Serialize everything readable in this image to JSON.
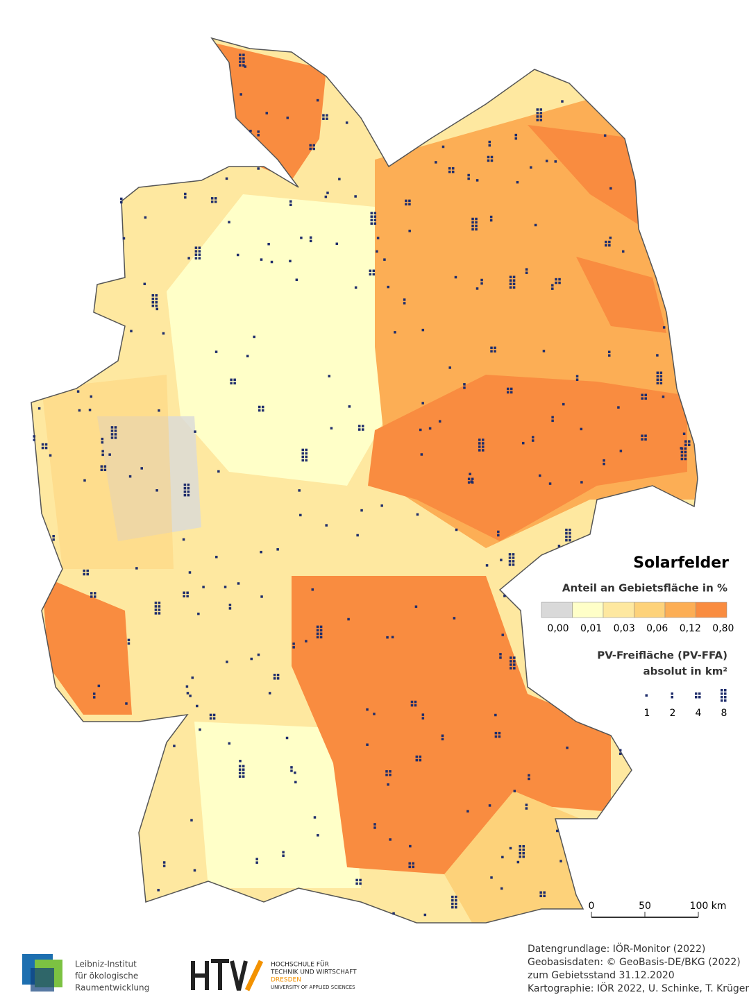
{
  "title": "Solarfelder",
  "legend": {
    "subtitle": "Anteil an Gebietsfläche in %",
    "classes": [
      "#d9d9d9",
      "#ffffc8",
      "#fee8a0",
      "#fdd27a",
      "#fcae55",
      "#f98c40"
    ],
    "breaks": [
      "0,00",
      "0,01",
      "0,03",
      "0,06",
      "0,12",
      "0,80"
    ],
    "symbol_title": [
      "PV-Freifläche (PV-FFA)",
      "absolut in km²"
    ],
    "symbols": [
      "1",
      "2",
      "4",
      "8"
    ]
  },
  "scale": {
    "labels": [
      "0",
      "50",
      "100 km"
    ]
  },
  "credits": [
    "Datengrundlage: IÖR-Monitor (2022)",
    "Geobasisdaten: © GeoBasis-DE/BKG (2022)",
    "zum Gebietsstand 31.12.2020",
    "Kartographie: IÖR 2022, U. Schinke, T. Krüger"
  ],
  "logos": {
    "ioer": [
      "Leibniz-Institut",
      "für ökologische",
      "Raumentwicklung"
    ],
    "htw": [
      "HOCHSCHULE FÜR",
      "TECHNIK UND WIRTSCHAFT",
      "DRESDEN",
      "UNIVERSITY OF APPLIED SCIENCES"
    ]
  }
}
